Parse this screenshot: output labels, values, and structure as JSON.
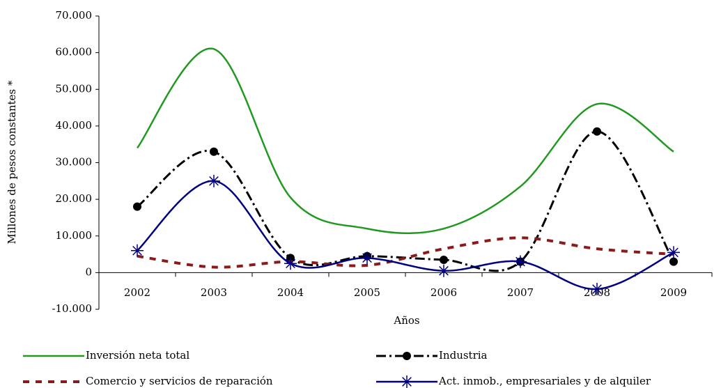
{
  "chart_data": {
    "type": "line",
    "x_label": "Años",
    "y_label": "Millones de pesos constantes *",
    "categories": [
      "2002",
      "2003",
      "2004",
      "2005",
      "2006",
      "2007",
      "2008",
      "2009"
    ],
    "ylim": [
      -10000,
      70000
    ],
    "yticks": [
      {
        "value": -10000,
        "label": "-10.000"
      },
      0,
      {
        "value": 10000,
        "label": "10.000"
      },
      {
        "value": 20000,
        "label": "20.000"
      },
      {
        "value": 30000,
        "label": "30.000"
      },
      {
        "value": 40000,
        "label": "40.000"
      },
      {
        "value": 50000,
        "label": "50.000"
      },
      {
        "value": 60000,
        "label": "60.000"
      },
      {
        "value": 70000,
        "label": "70.000"
      }
    ],
    "smooth": true,
    "series": [
      {
        "name": "Inversión neta total",
        "color": "#1f9a1f",
        "dash": "solid",
        "marker": "none",
        "values": [
          34000,
          61000,
          20500,
          12000,
          12000,
          23500,
          46000,
          33000
        ]
      },
      {
        "name": "Industria",
        "color": "#000000",
        "dash": "dashdot",
        "marker": "circle",
        "values": [
          18000,
          33000,
          4000,
          4500,
          3500,
          3000,
          38500,
          3000
        ]
      },
      {
        "name": "Comercio y servicios de reparación",
        "color": "#8b1a1a",
        "dash": "dashed",
        "marker": "none",
        "values": [
          4500,
          1500,
          3000,
          2000,
          6500,
          9500,
          6500,
          5000
        ]
      },
      {
        "name": "Act. inmob., empresariales y de alquiler",
        "color": "#000080",
        "dash": "solid",
        "marker": "asterisk",
        "values": [
          6000,
          25000,
          2500,
          4000,
          500,
          3000,
          -4500,
          5500
        ]
      }
    ]
  }
}
